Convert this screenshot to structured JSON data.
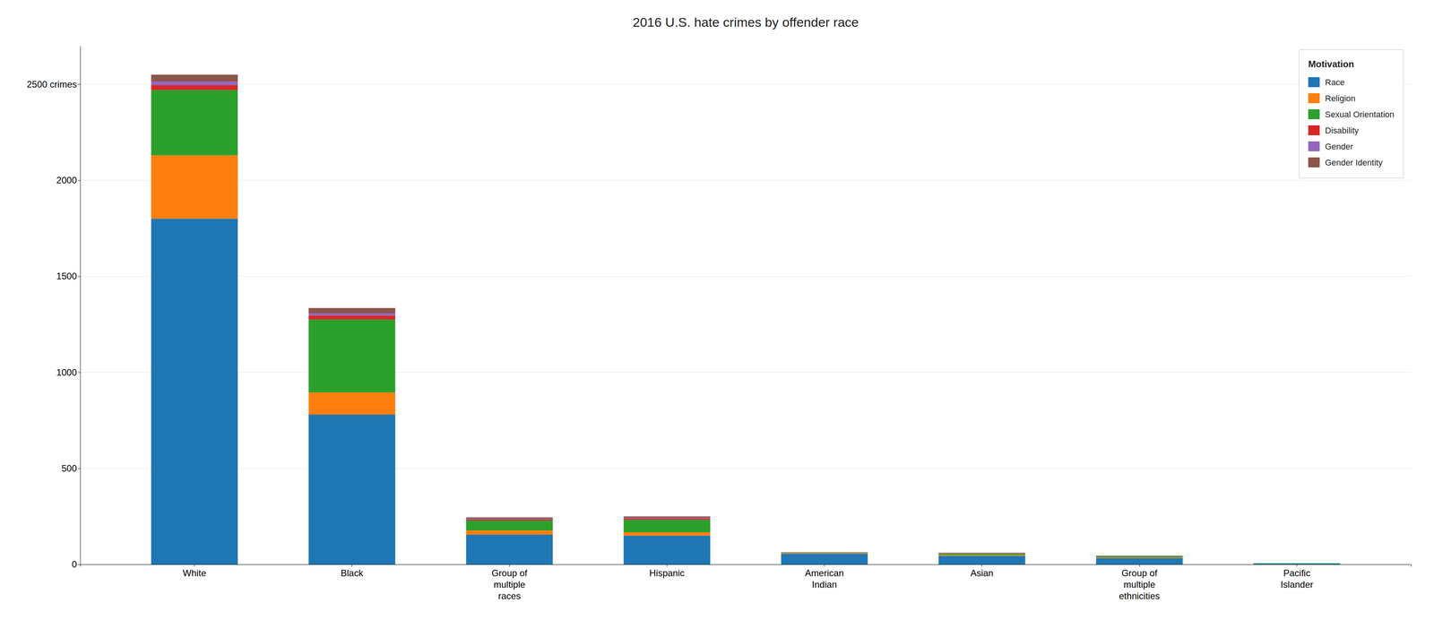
{
  "chart_data": {
    "type": "bar",
    "title": "2016 U.S. hate crimes by offender race",
    "categories": [
      "White",
      "Black",
      "Group of\nmultiple\nraces",
      "Hispanic",
      "American\nIndian",
      "Asian",
      "Group of\nmultiple\nethnicities",
      "Pacific\nIslander"
    ],
    "series": [
      {
        "name": "Race",
        "values": [
          1800,
          780,
          155,
          150,
          55,
          45,
          33,
          4
        ]
      },
      {
        "name": "Religion",
        "values": [
          330,
          115,
          22,
          17,
          3,
          5,
          3,
          0
        ]
      },
      {
        "name": "Sexual Orientation",
        "values": [
          340,
          380,
          52,
          65,
          3,
          7,
          6,
          2
        ]
      },
      {
        "name": "Disability",
        "values": [
          25,
          20,
          6,
          7,
          1,
          1,
          1,
          0
        ]
      },
      {
        "name": "Gender",
        "values": [
          20,
          12,
          4,
          4,
          1,
          1,
          1,
          0
        ]
      },
      {
        "name": "Gender Identity",
        "values": [
          35,
          28,
          6,
          7,
          1,
          2,
          2,
          0
        ]
      }
    ],
    "stacked": true,
    "ylim": [
      0,
      2700
    ],
    "yticks": [
      0,
      500,
      1000,
      1500,
      2000,
      {
        "value": 2500,
        "label": "2500 crimes"
      }
    ],
    "grid": true,
    "legend": "upper right",
    "legend_title": "Motivation"
  }
}
